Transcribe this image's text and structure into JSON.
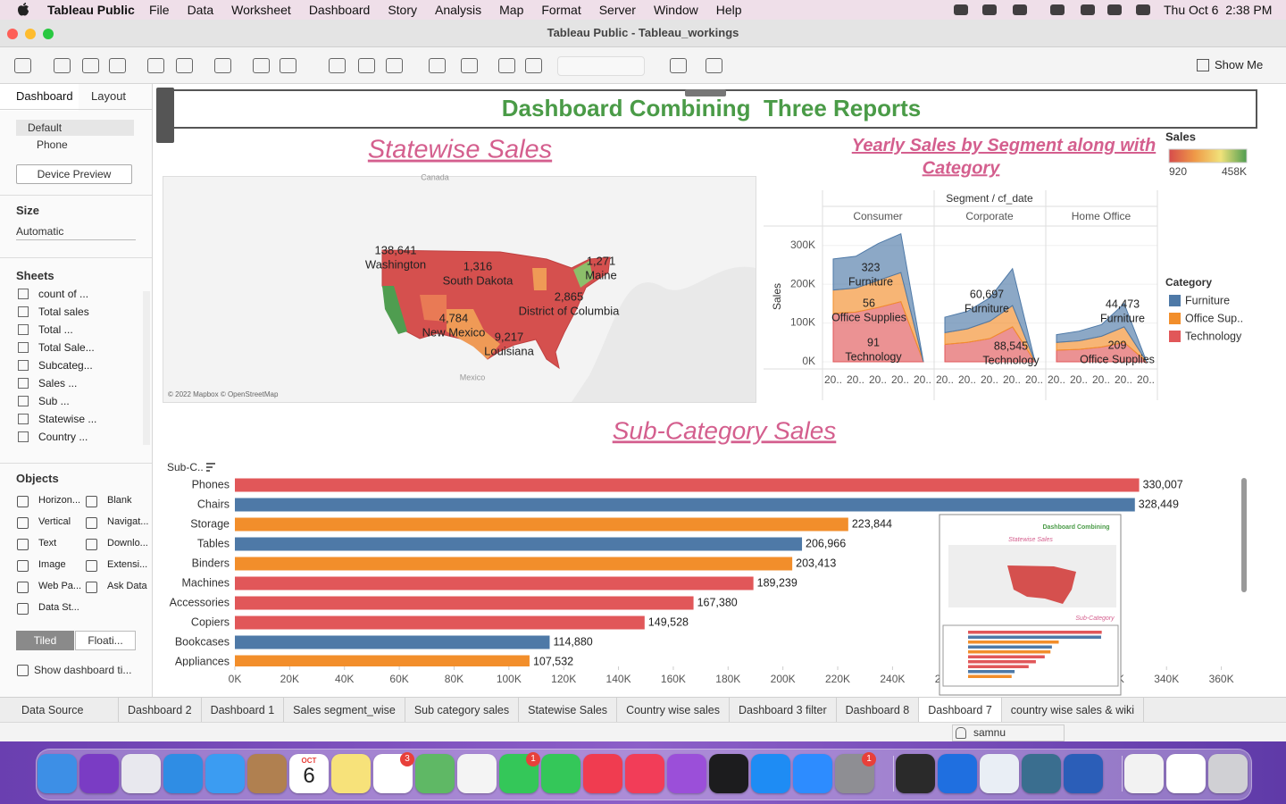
{
  "menu_bar": {
    "app": "Tableau Public",
    "items": [
      "File",
      "Data",
      "Worksheet",
      "Dashboard",
      "Story",
      "Analysis",
      "Map",
      "Format",
      "Server",
      "Window",
      "Help"
    ],
    "clock": "Thu Oct 6  2:38 PM"
  },
  "window_title": "Tableau Public - Tableau_workings",
  "toolbar": {
    "show_me": "Show Me"
  },
  "side_panel": {
    "tabs": [
      "Dashboard",
      "Layout"
    ],
    "devices": [
      "Default",
      "Phone"
    ],
    "device_preview": "Device Preview",
    "size_heading": "Size",
    "size_value": "Automatic",
    "sheets_heading": "Sheets",
    "sheets": [
      "count of ...",
      "Total sales",
      "Total ...",
      "Total Sale...",
      "Subcateg...",
      "Sales ...",
      "Sub ...",
      "Statewise ...",
      "Country ..."
    ],
    "objects_heading": "Objects",
    "objects": [
      "Horizon...",
      "Blank",
      "Vertical",
      "Navigat...",
      "Text",
      "Downlo...",
      "Image",
      "Extensi...",
      "Web Pa...",
      "Ask Data",
      "Data St..."
    ],
    "layout_modes": [
      "Tiled",
      "Floati..."
    ],
    "show_title": "Show dashboard ti..."
  },
  "dashboard": {
    "title": "Dashboard Combining  Three Reports"
  },
  "map": {
    "title": "Statewise Sales",
    "places": [
      "Canada",
      "Mexico"
    ],
    "attribution": "© 2022 Mapbox © OpenStreetMap",
    "labels": [
      [
        "138,641",
        "Washington"
      ],
      [
        "1,316",
        "South Dakota"
      ],
      [
        "1,271",
        "Maine"
      ],
      [
        "2,865",
        "District of Columbia"
      ],
      [
        "4,784",
        "New Mexico"
      ],
      [
        "9,217",
        "Louisiana"
      ]
    ]
  },
  "color_legend": {
    "title": "Sales",
    "min_label": "920",
    "max_label": "458K",
    "colors": [
      "#d64b4b",
      "#ef9a48",
      "#f0e27a",
      "#4f9d50"
    ]
  },
  "chart_data": [
    {
      "type": "area",
      "title": "Yearly Sales by Segment along with Category",
      "header": "Segment / cf_date",
      "y_label": "Sales",
      "ylim": [
        0,
        350000
      ],
      "yticks": [
        {
          "value": 0,
          "label": "0K"
        },
        {
          "value": 100000,
          "label": "100K"
        },
        {
          "value": 200000,
          "label": "200K"
        },
        {
          "value": 300000,
          "label": "300K"
        }
      ],
      "legend": {
        "title": "Category",
        "items": [
          {
            "name": "Furniture",
            "color": "#4e79a7"
          },
          {
            "name": "Office Sup..",
            "color": "#f28e2b"
          },
          {
            "name": "Technology",
            "color": "#e15759"
          }
        ]
      },
      "panels": [
        {
          "name": "Consumer",
          "categories": [
            "20..",
            "20..",
            "20..",
            "20..",
            "20.."
          ],
          "values": [
            [
              80000,
              82000,
              95000,
              100000,
              0
            ],
            [
              60000,
              62000,
              70000,
              75000,
              0
            ],
            [
              125000,
              128000,
              140000,
              155000,
              0
            ]
          ],
          "labels": [
            [
              "323",
              "Furniture"
            ],
            [
              "56",
              "Office Supplies"
            ],
            [
              "91",
              "Technology"
            ]
          ]
        },
        {
          "name": "Corporate",
          "categories": [
            "20..",
            "20..",
            "20..",
            "20..",
            "20.."
          ],
          "values": [
            [
              40000,
              45000,
              60000,
              95000,
              0
            ],
            [
              30000,
              35000,
              45000,
              55000,
              0
            ],
            [
              45000,
              50000,
              60000,
              90000,
              0
            ]
          ],
          "labels": [
            [
              "60,697",
              "Furniture"
            ],
            [
              "88,545",
              "Technology"
            ]
          ]
        },
        {
          "name": "Home Office",
          "categories": [
            "20..",
            "20..",
            "20..",
            "20..",
            "20.."
          ],
          "values": [
            [
              20000,
              25000,
              30000,
              60000,
              0
            ],
            [
              20000,
              22000,
              28000,
              40000,
              0
            ],
            [
              30000,
              32000,
              38000,
              50000,
              0
            ]
          ],
          "labels": [
            [
              "44,473",
              "Furniture"
            ],
            [
              "209",
              "Office Supplies"
            ]
          ]
        }
      ]
    },
    {
      "type": "bar",
      "orientation": "horizontal",
      "title": "Sub-Category Sales",
      "axis_label": "Sub-C..",
      "categories": [
        "Phones",
        "Chairs",
        "Storage",
        "Tables",
        "Binders",
        "Machines",
        "Accessories",
        "Copiers",
        "Bookcases",
        "Appliances"
      ],
      "values": [
        330007,
        328449,
        223844,
        206966,
        203413,
        189239,
        167380,
        149528,
        114880,
        107532
      ],
      "value_labels": [
        "330,007",
        "328,449",
        "223,844",
        "206,966",
        "203,413",
        "189,239",
        "167,380",
        "149,528",
        "114,880",
        "107,532"
      ],
      "colors": [
        "#e15759",
        "#4e79a7",
        "#f28e2b",
        "#4e79a7",
        "#f28e2b",
        "#e15759",
        "#e15759",
        "#e15759",
        "#4e79a7",
        "#f28e2b"
      ],
      "xlim": [
        0,
        366000
      ],
      "xticks": [
        {
          "value": 0,
          "label": "0K"
        },
        {
          "value": 20000,
          "label": "20K"
        },
        {
          "value": 40000,
          "label": "40K"
        },
        {
          "value": 60000,
          "label": "60K"
        },
        {
          "value": 80000,
          "label": "80K"
        },
        {
          "value": 100000,
          "label": "100K"
        },
        {
          "value": 120000,
          "label": "120K"
        },
        {
          "value": 140000,
          "label": "140K"
        },
        {
          "value": 160000,
          "label": "160K"
        },
        {
          "value": 180000,
          "label": "180K"
        },
        {
          "value": 200000,
          "label": "200K"
        },
        {
          "value": 220000,
          "label": "220K"
        },
        {
          "value": 240000,
          "label": "240K"
        },
        {
          "value": 260000,
          "label": "260K"
        },
        {
          "value": 280000,
          "label": "280K"
        },
        {
          "value": 300000,
          "label": "300K"
        },
        {
          "value": 320000,
          "label": "320K"
        },
        {
          "value": 340000,
          "label": "340K"
        },
        {
          "value": 360000,
          "label": "360K"
        }
      ]
    }
  ],
  "thumbnail": {
    "texts": [
      "Dashboard Combining",
      "Statewise Sales",
      "Sub-Category"
    ]
  },
  "tabs": {
    "items": [
      "Data Source",
      "Dashboard 2",
      "Dashboard 1",
      "Sales segment_wise",
      "Sub category sales",
      "Statewise Sales",
      "Country wise sales",
      "Dashboard 3 filter",
      "Dashboard 8",
      "Dashboard 7",
      "country wise sales & wiki"
    ],
    "active": 9
  },
  "status_bar": {
    "user": "samnu"
  },
  "dock": {
    "calendar": [
      "OCT",
      "6"
    ],
    "apps": [
      {
        "color": "#3d8fe6"
      },
      {
        "color": "#7a3cc4"
      },
      {
        "color": "#e8e8ee"
      },
      {
        "color": "#2f8de4"
      },
      {
        "color": "#3b9cf2"
      },
      {
        "color": "#b08050"
      },
      {
        "color": "#ffffff"
      },
      {
        "color": "#f7e27a"
      },
      {
        "color": "#ffffff",
        "badge": "3"
      },
      {
        "color": "#5fb865"
      },
      {
        "color": "#f4f4f4"
      },
      {
        "color": "#34c759",
        "badge": "1"
      },
      {
        "color": "#34c759"
      },
      {
        "color": "#f03c50"
      },
      {
        "color": "#f23d58"
      },
      {
        "color": "#9b4fd9"
      },
      {
        "color": "#1c1c1e"
      },
      {
        "color": "#1e8cf4"
      },
      {
        "color": "#2d8cff"
      },
      {
        "color": "#8e8e93",
        "badge": "1"
      },
      {
        "color": "#2a2a2a"
      },
      {
        "color": "#1f6fe0"
      },
      {
        "color": "#e9eef5"
      },
      {
        "color": "#3a6e8f"
      },
      {
        "color": "#2b5eb8"
      },
      {
        "color": "#f2f2f2"
      },
      {
        "color": "#ffffff"
      },
      {
        "color": "#d0d0d4"
      }
    ]
  }
}
